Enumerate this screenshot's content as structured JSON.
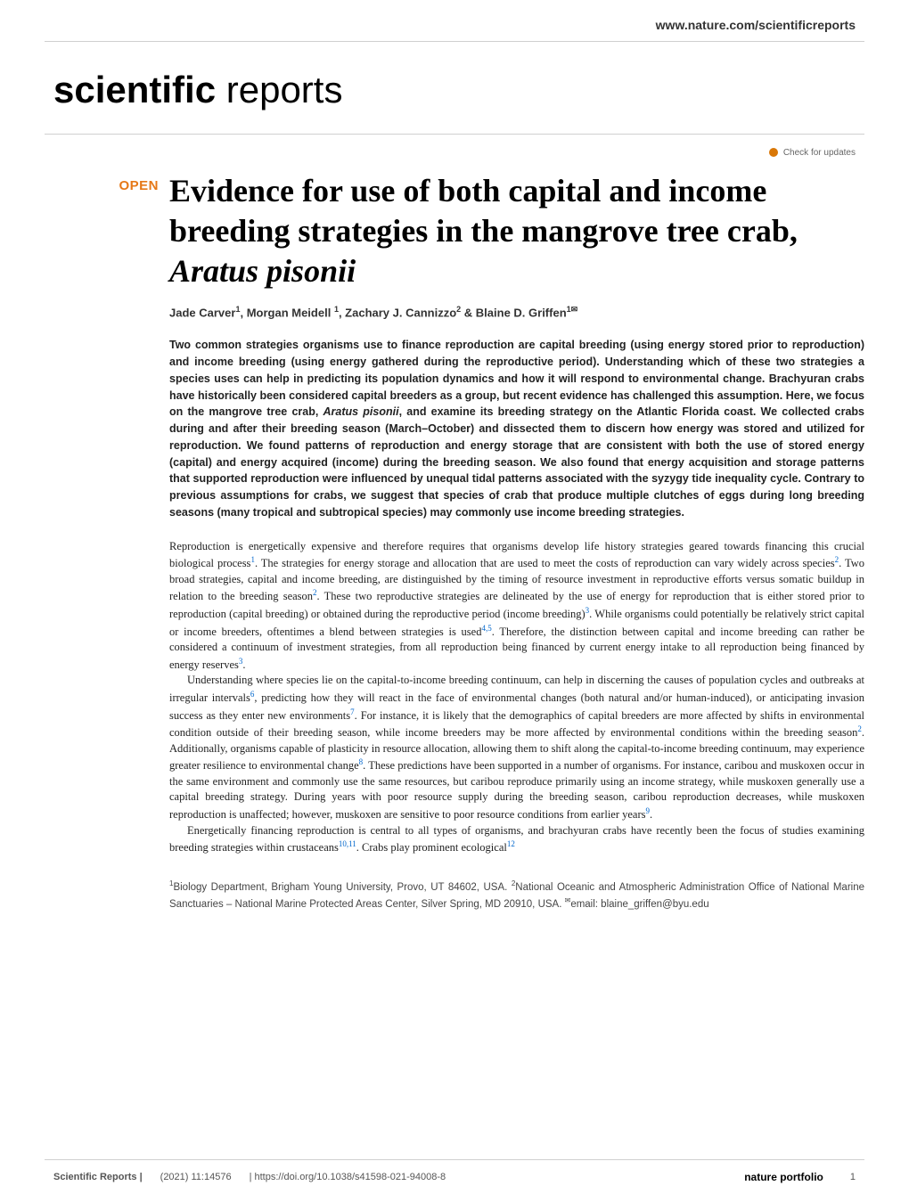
{
  "header": {
    "url": "www.nature.com/scientificreports",
    "journal_bold": "scientific",
    "journal_light": " reports",
    "check_updates_label": "Check for updates"
  },
  "article": {
    "open_badge": "OPEN",
    "title_html": "Evidence for use of both capital and income breeding strategies in the mangrove tree crab, <em>Aratus pisonii</em>",
    "authors_html": "Jade Carver<sup>1</sup>, Morgan Meidell <sup>1</sup>, Zachary J. Cannizzo<sup>2</sup> & Blaine D. Griffen<sup>1✉</sup>",
    "abstract_html": "Two common strategies organisms use to finance reproduction are capital breeding (using energy stored prior to reproduction) and income breeding (using energy gathered during the reproductive period). Understanding which of these two strategies a species uses can help in predicting its population dynamics and how it will respond to environmental change. Brachyuran crabs have historically been considered capital breeders as a group, but recent evidence has challenged this assumption. Here, we focus on the mangrove tree crab, <em>Aratus pisonii</em>, and examine its breeding strategy on the Atlantic Florida coast. We collected crabs during and after their breeding season (March–October) and dissected them to discern how energy was stored and utilized for reproduction. We found patterns of reproduction and energy storage that are consistent with both the use of stored energy (capital) and energy acquired (income) during the breeding season. We also found that energy acquisition and storage patterns that supported reproduction were influenced by unequal tidal patterns associated with the syzygy tide inequality cycle. Contrary to previous assumptions for crabs, we suggest that species of crab that produce multiple clutches of eggs during long breeding seasons (many tropical and subtropical species) may commonly use income breeding strategies.",
    "paragraphs": [
      "Reproduction is energetically expensive and therefore requires that organisms develop life history strategies geared towards financing this crucial biological process<span class='ref-link'>1</span>. The strategies for energy storage and allocation that are used to meet the costs of reproduction can vary widely across species<span class='ref-link'>2</span>. Two broad strategies, capital and income breeding, are distinguished by the timing of resource investment in reproductive efforts versus somatic buildup in relation to the breeding season<span class='ref-link'>2</span>. These two reproductive strategies are delineated by the use of energy for reproduction that is either stored prior to reproduction (capital breeding) or obtained during the reproductive period (income breeding)<span class='ref-link'>3</span>. While organisms could potentially be relatively strict capital or income breeders, oftentimes a blend between strategies is used<span class='ref-link'>4,5</span>. Therefore, the distinction between capital and income breeding can rather be considered a continuum of investment strategies, from all reproduction being financed by current energy intake to all reproduction being financed by energy reserves<span class='ref-link'>3</span>.",
      "Understanding where species lie on the capital-to-income breeding continuum, can help in discerning the causes of population cycles and outbreaks at irregular intervals<span class='ref-link'>6</span>, predicting how they will react in the face of environmental changes (both natural and/or human-induced), or anticipating invasion success as they enter new environments<span class='ref-link'>7</span>. For instance, it is likely that the demographics of capital breeders are more affected by shifts in environmental condition outside of their breeding season, while income breeders may be more affected by environmental conditions within the breeding season<span class='ref-link'>2</span>. Additionally, organisms capable of plasticity in resource allocation, allowing them to shift along the capital-to-income breeding continuum, may experience greater resilience to environmental change<span class='ref-link'>8</span>. These predictions have been supported in a number of organisms. For instance, caribou and muskoxen occur in the same environment and commonly use the same resources, but caribou reproduce primarily using an income strategy, while muskoxen generally use a capital breeding strategy. During years with poor resource supply during the breeding season, caribou reproduction decreases, while muskoxen reproduction is unaffected; however, muskoxen are sensitive to poor resource conditions from earlier years<span class='ref-link'>9</span>.",
      "Energetically financing reproduction is central to all types of organisms, and brachyuran crabs have recently been the focus of studies examining breeding strategies within crustaceans<span class='ref-link'>10,11</span>. Crabs play prominent ecological<span class='ref-link'>12</span>"
    ],
    "affiliations_html": "<sup>1</sup>Biology Department, Brigham Young University, Provo, UT 84602, USA. <sup>2</sup>National Oceanic and Atmospheric Administration Office of National Marine Sanctuaries – National Marine Protected Areas Center, Silver Spring, MD 20910, USA. <sup>✉</sup>email: blaine_griffen@byu.edu"
  },
  "footer": {
    "journal": "Scientific Reports |",
    "citation": "(2021) 11:14576",
    "doi": "| https://doi.org/10.1038/s41598-021-94008-8",
    "publisher": "nature portfolio",
    "page": "1"
  },
  "colors": {
    "open_badge": "#e67817",
    "ref_link": "#0066cc",
    "text": "#333333",
    "divider": "#d0d0d0",
    "updates_icon": "#d97706"
  }
}
